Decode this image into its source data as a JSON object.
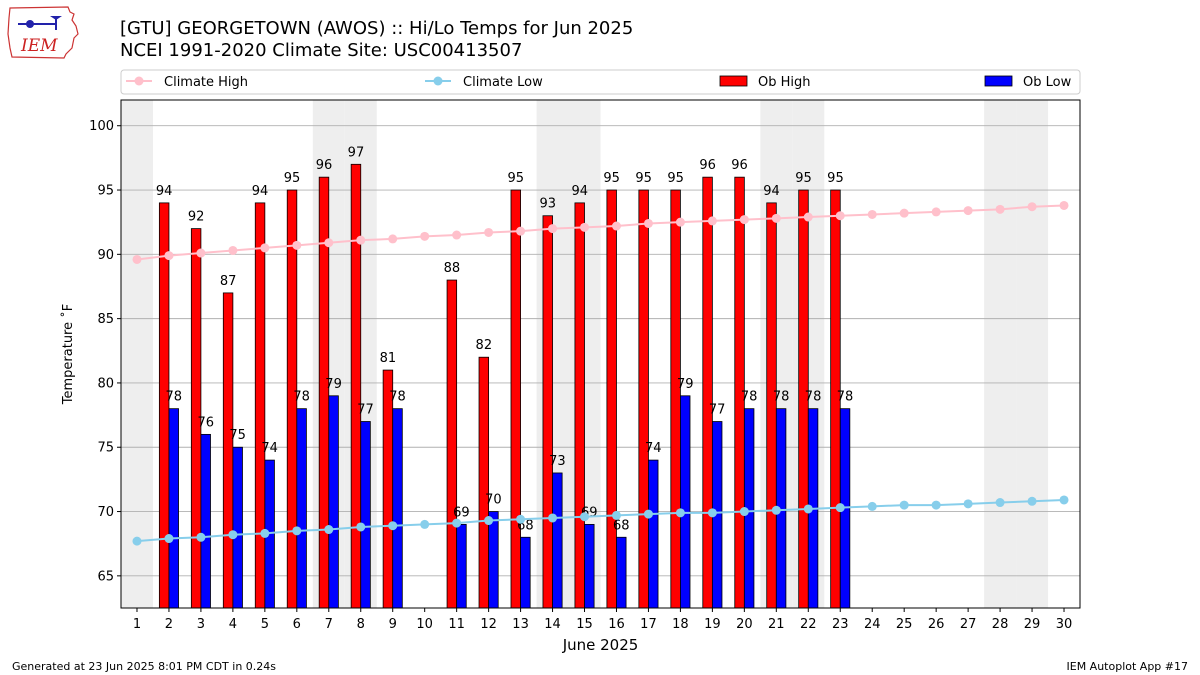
{
  "title_line1": "[GTU] GEORGETOWN (AWOS) :: Hi/Lo Temps for Jun 2025",
  "title_line2": "NCEI 1991-2020 Climate Site: USC00413507",
  "logo_text": "IEM",
  "footer_left": "Generated at 23 Jun 2025 8:01 PM CDT in 0.24s",
  "footer_right": "IEM Autoplot App #17",
  "colors": {
    "climate_high": "#ffc0cb",
    "climate_low": "#87ceeb",
    "ob_high": "#ff0000",
    "ob_low": "#0000ff",
    "weekend": "#eeeeee",
    "grid": "#b0b0b0"
  },
  "chart_data": {
    "type": "bar",
    "xlabel": "June 2025",
    "ylabel": "Temperature ˚F",
    "ylim": [
      62.5,
      102
    ],
    "yticks": [
      65,
      70,
      75,
      80,
      85,
      90,
      95,
      100
    ],
    "xlim": [
      0.5,
      30.5
    ],
    "days": [
      1,
      2,
      3,
      4,
      5,
      6,
      7,
      8,
      9,
      10,
      11,
      12,
      13,
      14,
      15,
      16,
      17,
      18,
      19,
      20,
      21,
      22,
      23,
      24,
      25,
      26,
      27,
      28,
      29,
      30
    ],
    "weekend_days": [
      1,
      7,
      8,
      14,
      15,
      21,
      22,
      28,
      29
    ],
    "legend": [
      "Climate High",
      "Climate Low",
      "Ob High",
      "Ob Low"
    ],
    "series": [
      {
        "name": "Climate High",
        "kind": "line",
        "values": [
          89.6,
          89.9,
          90.1,
          90.3,
          90.5,
          90.7,
          90.9,
          91.1,
          91.2,
          91.4,
          91.5,
          91.7,
          91.8,
          92.0,
          92.1,
          92.2,
          92.4,
          92.5,
          92.6,
          92.7,
          92.8,
          92.9,
          93.0,
          93.1,
          93.2,
          93.3,
          93.4,
          93.5,
          93.7,
          93.8
        ]
      },
      {
        "name": "Climate Low",
        "kind": "line",
        "values": [
          67.7,
          67.9,
          68.0,
          68.2,
          68.3,
          68.5,
          68.6,
          68.8,
          68.9,
          69.0,
          69.1,
          69.3,
          69.4,
          69.5,
          69.6,
          69.7,
          69.8,
          69.9,
          69.9,
          70.0,
          70.1,
          70.2,
          70.3,
          70.4,
          70.5,
          70.5,
          70.6,
          70.7,
          70.8,
          70.9
        ]
      },
      {
        "name": "Ob High",
        "kind": "bar",
        "values": [
          null,
          94,
          92,
          87,
          94,
          95,
          96,
          97,
          81,
          null,
          88,
          82,
          95,
          93,
          94,
          95,
          95,
          95,
          96,
          96,
          94,
          95,
          95,
          null,
          null,
          null,
          null,
          null,
          null,
          null
        ]
      },
      {
        "name": "Ob Low",
        "kind": "bar",
        "values": [
          null,
          78,
          76,
          75,
          74,
          78,
          79,
          77,
          78,
          null,
          69,
          70,
          68,
          73,
          69,
          68,
          74,
          79,
          77,
          78,
          78,
          78,
          78,
          null,
          null,
          null,
          null,
          null,
          null,
          null
        ]
      }
    ]
  }
}
